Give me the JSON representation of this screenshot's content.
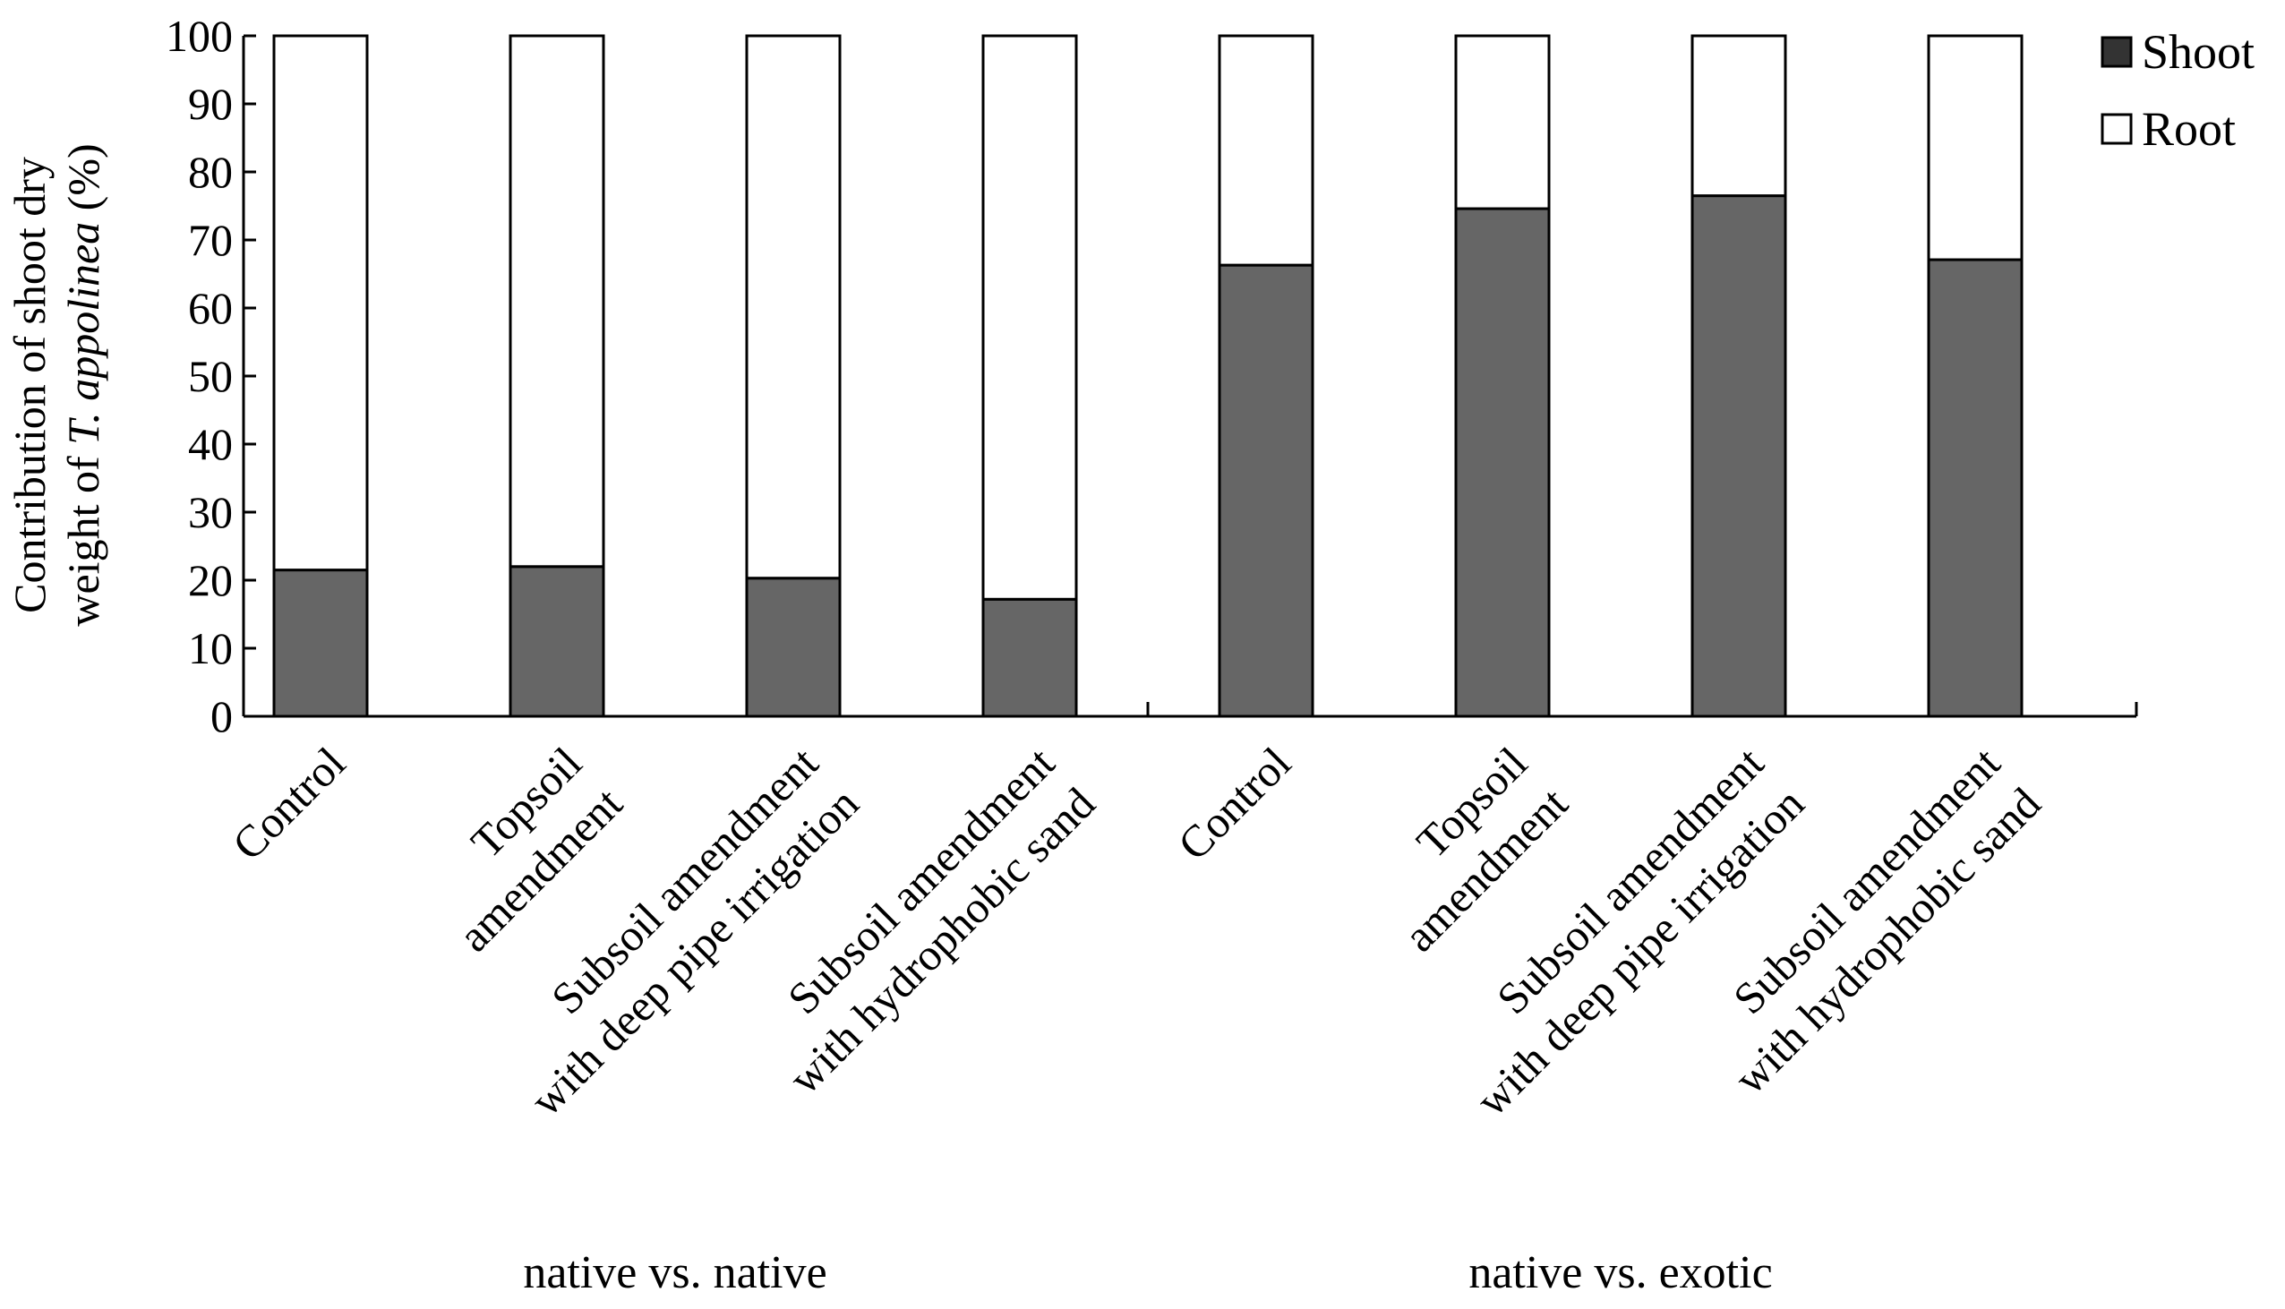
{
  "chart_data": {
    "type": "bar",
    "stacked": true,
    "ylabel_lines": [
      [
        "Contribution of shoot dry"
      ],
      [
        "weight of ",
        "T. appolinea",
        " (%)"
      ]
    ],
    "ylim": [
      0,
      100
    ],
    "yticks": [
      0,
      10,
      20,
      30,
      40,
      50,
      60,
      70,
      80,
      90,
      100
    ],
    "categories": [
      [
        "Control"
      ],
      [
        "Topsoil",
        "amendment"
      ],
      [
        "Subsoil amendment",
        "with deep pipe irrigation"
      ],
      [
        "Subsoil amendment",
        "with hydrophobic sand"
      ],
      [
        "Control"
      ],
      [
        "Topsoil",
        "amendment"
      ],
      [
        "Subsoil amendment",
        "with deep pipe irrigation"
      ],
      [
        "Subsoil amendment",
        "with hydrophobic sand"
      ]
    ],
    "groups": [
      {
        "label": "native vs. native",
        "start": 0,
        "end": 3
      },
      {
        "label": "native vs. exotic",
        "start": 4,
        "end": 7
      }
    ],
    "series": [
      {
        "name": "Shoot",
        "color": "#666666",
        "values": [
          21.5,
          22,
          20.3,
          17.2,
          66.3,
          74.6,
          76.5,
          67.1
        ]
      },
      {
        "name": "Root",
        "color": "#ffffff",
        "values": [
          78.5,
          78,
          79.7,
          82.8,
          33.7,
          25.4,
          23.5,
          32.9
        ]
      }
    ],
    "legend": "top-right",
    "grid": false
  }
}
